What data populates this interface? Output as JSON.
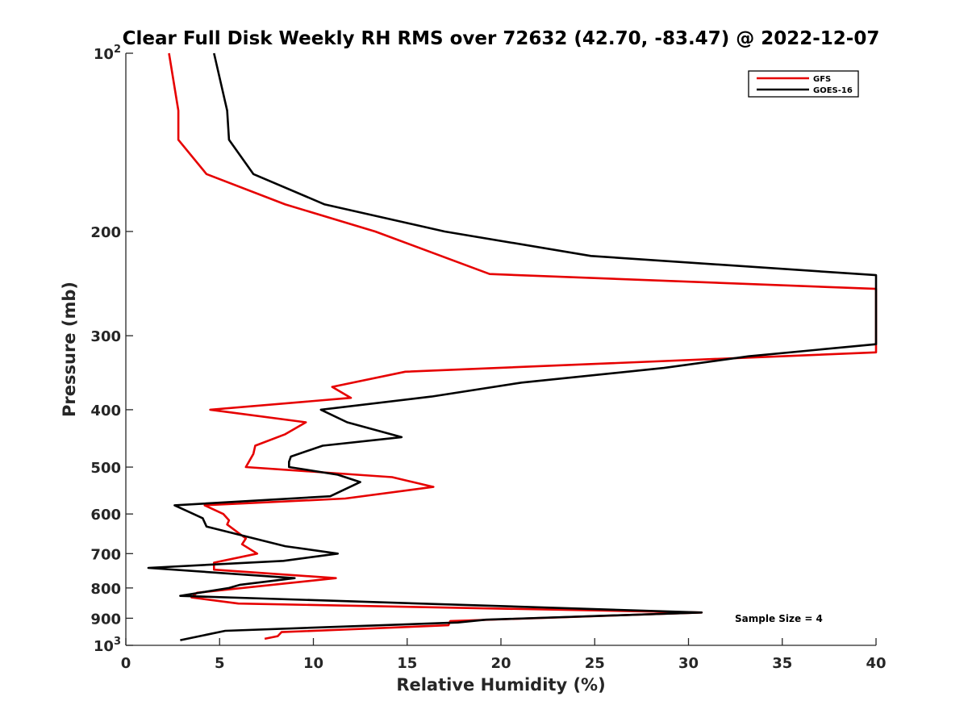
{
  "chart_data": {
    "type": "line",
    "title": "Clear Full Disk Weekly RH RMS over 72632 (42.70, -83.47) @ 2022-12-07",
    "xlabel": "Relative Humidity (%)",
    "ylabel": "Pressure (mb)",
    "xlim": [
      0,
      40
    ],
    "ylim": [
      100,
      1000
    ],
    "yscale": "log",
    "y_reversed": true,
    "grid": false,
    "legend_position": "top-right",
    "x_ticks": [
      "0",
      "5",
      "10",
      "15",
      "20",
      "25",
      "30",
      "35",
      "40"
    ],
    "y_ticks": [
      {
        "value": 100,
        "base": "10",
        "exp": "2"
      },
      {
        "value": 200,
        "label": "200"
      },
      {
        "value": 300,
        "label": "300"
      },
      {
        "value": 400,
        "label": "400"
      },
      {
        "value": 500,
        "label": "500"
      },
      {
        "value": 600,
        "label": "600"
      },
      {
        "value": 700,
        "label": "700"
      },
      {
        "value": 800,
        "label": "800"
      },
      {
        "value": 900,
        "label": "900"
      },
      {
        "value": 1000,
        "base": "10",
        "exp": "3"
      }
    ],
    "annotation": "Sample Size = 4",
    "series": [
      {
        "name": "GFS",
        "color": "#e60000",
        "points": [
          [
            2.3,
            100
          ],
          [
            2.8,
            125
          ],
          [
            2.8,
            140
          ],
          [
            4.3,
            160
          ],
          [
            8.5,
            180
          ],
          [
            13.3,
            200
          ],
          [
            19.4,
            236
          ],
          [
            40,
            250
          ],
          [
            40,
            320
          ],
          [
            14.9,
            345
          ],
          [
            11.0,
            366
          ],
          [
            12.0,
            382
          ],
          [
            4.5,
            400
          ],
          [
            9.6,
            420
          ],
          [
            8.5,
            440
          ],
          [
            6.9,
            460
          ],
          [
            6.8,
            475
          ],
          [
            6.4,
            500
          ],
          [
            14.2,
            520
          ],
          [
            16.4,
            540
          ],
          [
            11.7,
            565
          ],
          [
            4.2,
            580
          ],
          [
            5.2,
            600
          ],
          [
            5.5,
            615
          ],
          [
            5.4,
            625
          ],
          [
            6.4,
            660
          ],
          [
            6.2,
            675
          ],
          [
            7.0,
            700
          ],
          [
            4.7,
            725
          ],
          [
            4.7,
            745
          ],
          [
            11.2,
            770
          ],
          [
            3.8,
            815
          ],
          [
            3.5,
            830
          ],
          [
            6.0,
            850
          ],
          [
            30.7,
            880
          ],
          [
            17.3,
            910
          ],
          [
            17.2,
            925
          ],
          [
            8.3,
            950
          ],
          [
            8.1,
            965
          ],
          [
            7.4,
            975
          ]
        ]
      },
      {
        "name": "GOES-16",
        "color": "#000000",
        "points": [
          [
            4.7,
            100
          ],
          [
            5.4,
            125
          ],
          [
            5.5,
            140
          ],
          [
            6.8,
            160
          ],
          [
            10.6,
            180
          ],
          [
            17.0,
            200
          ],
          [
            24.8,
            220
          ],
          [
            40,
            237
          ],
          [
            40,
            310
          ],
          [
            33.2,
            325
          ],
          [
            28.7,
            340
          ],
          [
            21.1,
            360
          ],
          [
            16.3,
            380
          ],
          [
            10.4,
            400
          ],
          [
            11.8,
            420
          ],
          [
            14.7,
            445
          ],
          [
            10.5,
            460
          ],
          [
            8.8,
            480
          ],
          [
            8.7,
            490
          ],
          [
            8.7,
            500
          ],
          [
            11.3,
            515
          ],
          [
            12.5,
            530
          ],
          [
            10.9,
            560
          ],
          [
            2.6,
            580
          ],
          [
            4.1,
            610
          ],
          [
            4.3,
            630
          ],
          [
            8.5,
            680
          ],
          [
            11.3,
            700
          ],
          [
            8.4,
            720
          ],
          [
            1.2,
            740
          ],
          [
            9.0,
            770
          ],
          [
            6.1,
            790
          ],
          [
            5.5,
            800
          ],
          [
            2.9,
            825
          ],
          [
            30.7,
            880
          ],
          [
            19.2,
            905
          ],
          [
            17.7,
            915
          ],
          [
            5.3,
            945
          ],
          [
            2.9,
            980
          ]
        ]
      }
    ]
  }
}
